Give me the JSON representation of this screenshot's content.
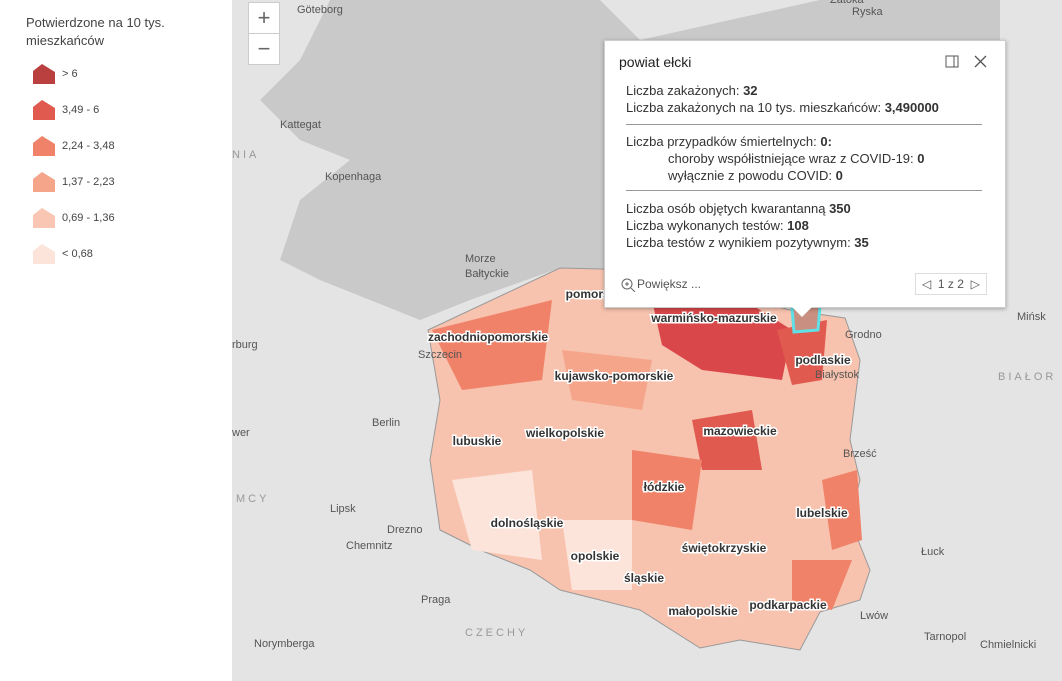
{
  "legend": {
    "title": "Potwierdzone na 10 tys. mieszkańców",
    "items": [
      {
        "label": "> 6",
        "color": "#b9403f"
      },
      {
        "label": "3,49 - 6",
        "color": "#e05a4f"
      },
      {
        "label": "2,24 - 3,48",
        "color": "#ef8268"
      },
      {
        "label": "1,37 - 2,23",
        "color": "#f4a58a"
      },
      {
        "label": "0,69 - 1,36",
        "color": "#f8c6b2"
      },
      {
        "label": "< 0,68",
        "color": "#fce4da"
      }
    ]
  },
  "zoom": {
    "in": "+",
    "out": "−"
  },
  "places": [
    "Göteborg",
    "Zatoka",
    "Ryska",
    "NIA",
    "Kattegat",
    "Kopenhaga",
    "Morze",
    "Bałtyckie",
    "rburg",
    "Szczecin",
    "Berlin",
    "wer",
    "MCY",
    "Lipsk",
    "Drezno",
    "Chemnitz",
    "Praga",
    "CZECHY",
    "Norymberga",
    "Mińsk",
    "BIAŁOR",
    "Grodno",
    "Białystok",
    "Brześć",
    "Łuck",
    "Lwów",
    "Tarnopol",
    "Chmielnicki"
  ],
  "regions": [
    "zachodniopomorskie",
    "pomorskie",
    "warmińsko-mazurskie",
    "kujawsko-pomorskie",
    "podlaskie",
    "lubuskie",
    "wielkopolskie",
    "mazowieckie",
    "łódzkie",
    "lubelskie",
    "dolnośląskie",
    "opolskie",
    "świętokrzyskie",
    "śląskie",
    "małopolskie",
    "podkarpackie"
  ],
  "popup": {
    "title": "powiat ełcki",
    "lines": [
      {
        "label": "Liczba zakażonych: ",
        "value": "32"
      },
      {
        "label": "Liczba zakażonych na 10 tys. mieszkańców: ",
        "value": "3,490000"
      },
      {
        "label": "Liczba przypadków śmiertelnych: ",
        "value": "0:"
      },
      {
        "label": "choroby współistniejące wraz z COVID-19: ",
        "value": "0"
      },
      {
        "label": "wyłącznie z powodu COVID: ",
        "value": "0"
      },
      {
        "label": "Liczba osób objętych kwarantanną ",
        "value": "350"
      },
      {
        "label": "Liczba wykonanych testów: ",
        "value": "108"
      },
      {
        "label": "Liczba testów z wynikiem pozytywnym: ",
        "value": "35"
      }
    ],
    "zoom_link": "Powiększ ...",
    "pager": "1 z 2"
  }
}
